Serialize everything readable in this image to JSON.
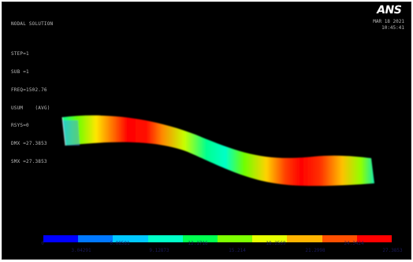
{
  "header": {
    "info_lines": [
      "NODAL SOLUTION",
      "",
      "STEP=1",
      "SUB =1",
      "FREQ=1502.76",
      "USUM    (AVG)",
      "RSYS=0",
      "DMX =27.3853",
      "SMX =27.3853"
    ],
    "logo": "ANS",
    "date": "MAR 18 2021",
    "time": "10:45:41"
  },
  "legend": {
    "colors": [
      "#0000ff",
      "#0078ff",
      "#00c8ff",
      "#00ffc8",
      "#00ff50",
      "#7dff00",
      "#e6ff00",
      "#ffb400",
      "#ff5000",
      "#ff0000"
    ],
    "top_ticks": [
      "0",
      "6.08581",
      "12.1716",
      "18.2569",
      "24.3424"
    ],
    "bottom_ticks": [
      "3.04291",
      "9.12873",
      "15.214",
      "21.2998",
      "27.3853"
    ]
  }
}
